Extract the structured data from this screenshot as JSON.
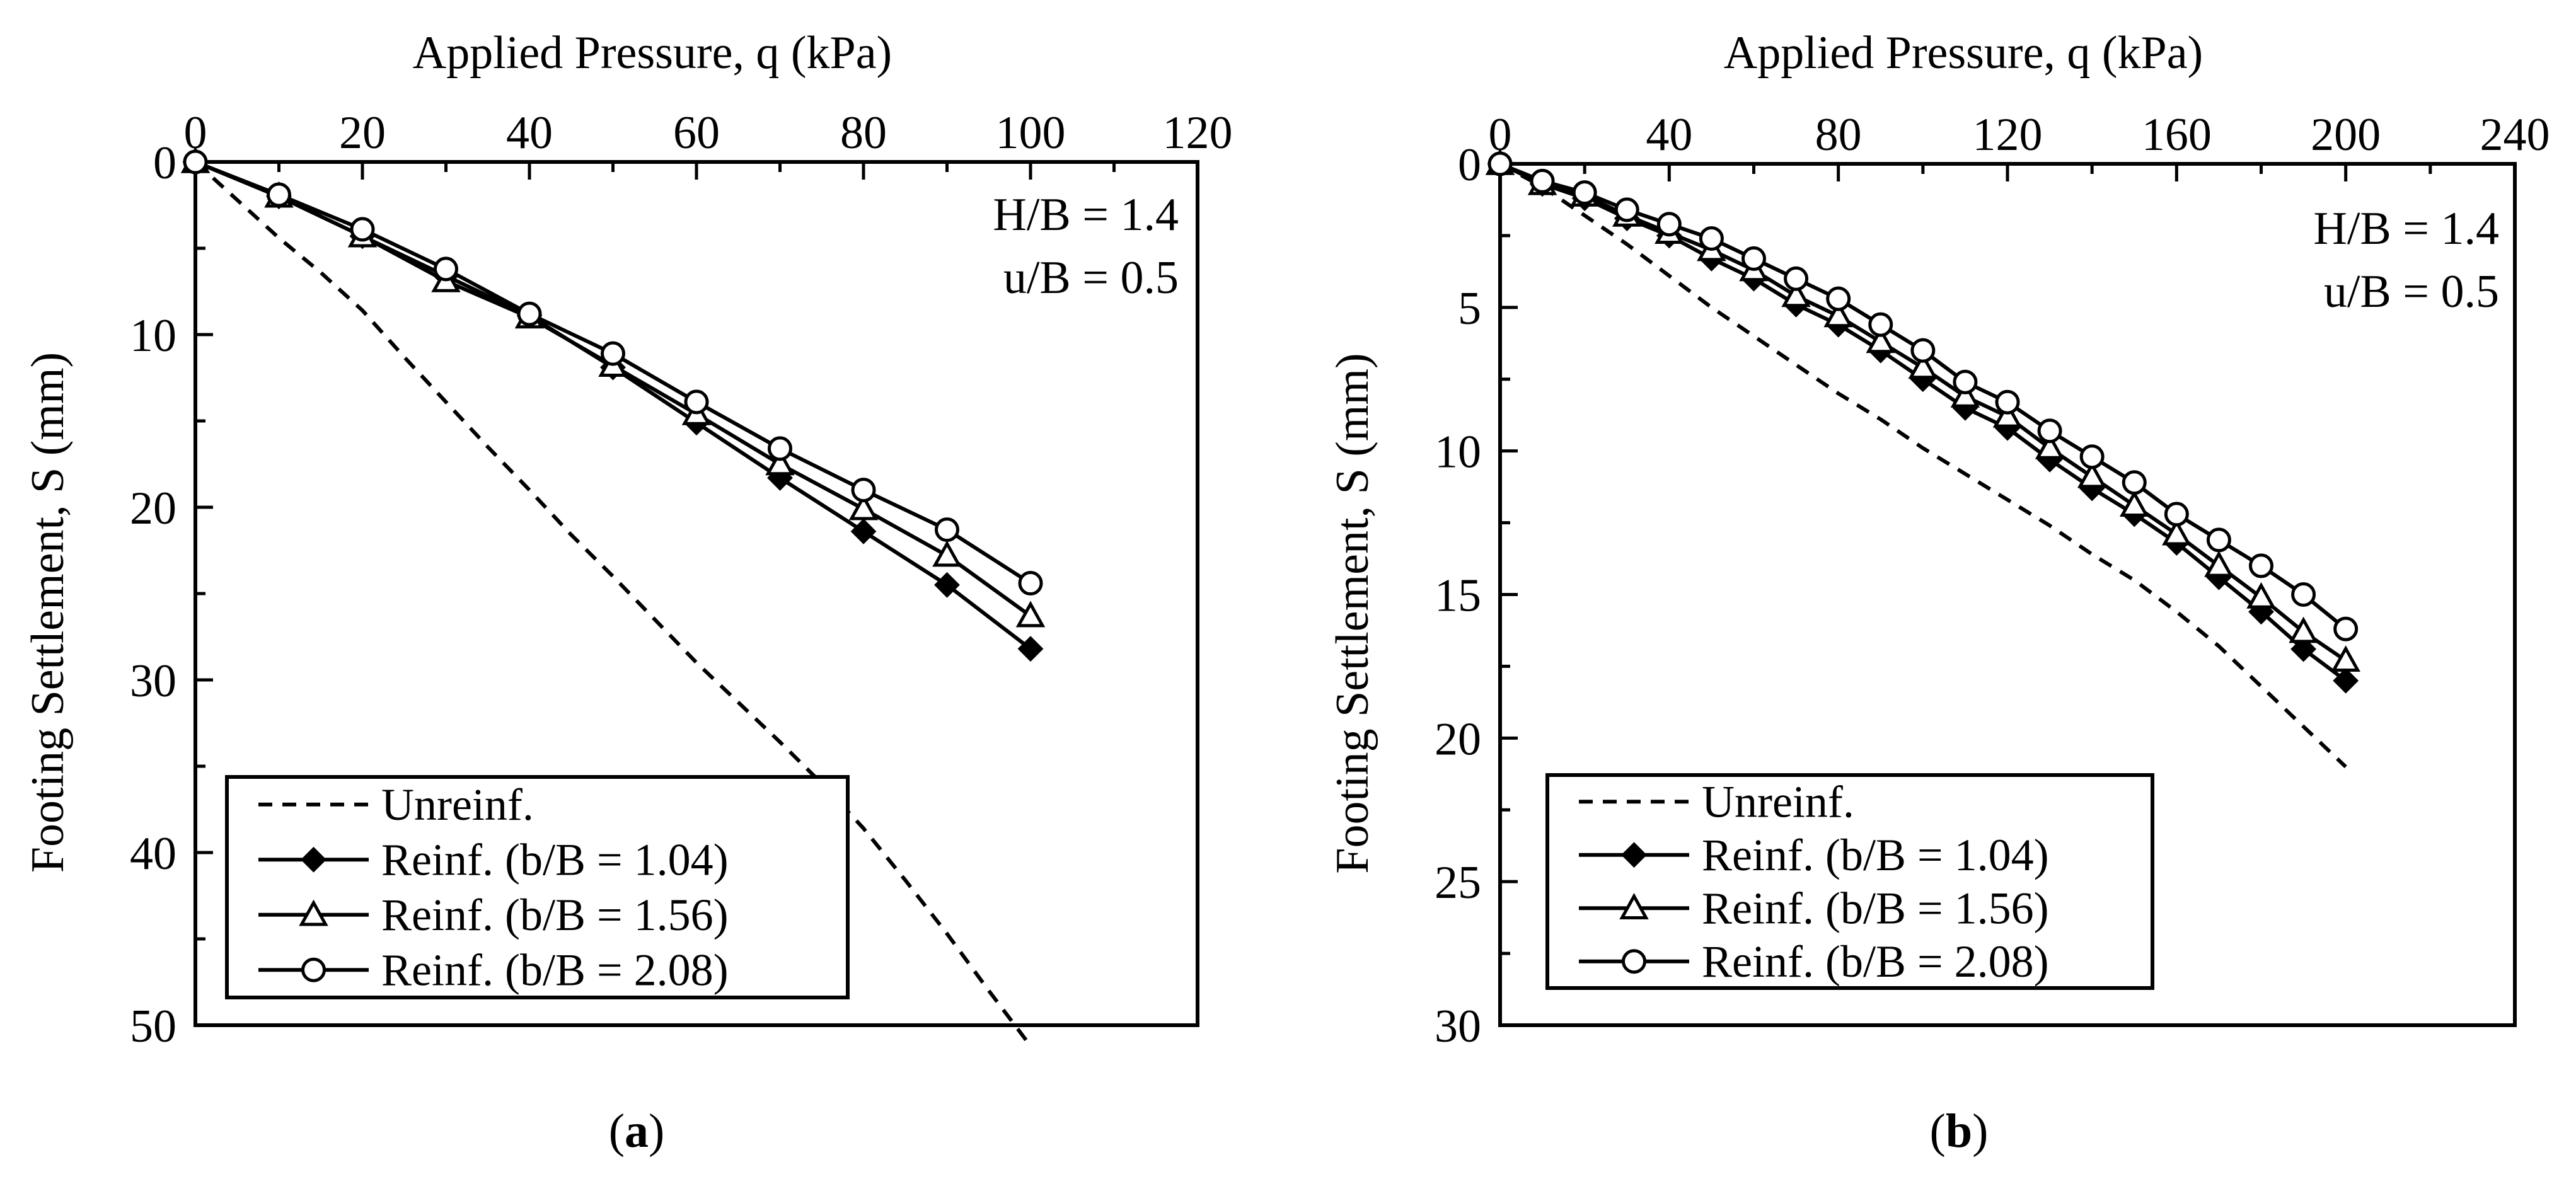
{
  "chart_data": [
    {
      "type": "line",
      "panel": "a",
      "caption": {
        "open": "(",
        "letter": "a",
        "close": ")"
      },
      "xlabel": "Applied Pressure, q (kPa)",
      "ylabel": "Footing Settlement, S (mm)",
      "xlim": [
        0,
        120
      ],
      "ylim": [
        0,
        50
      ],
      "y_inverted": true,
      "x_axis_position": "top",
      "xticks": [
        0,
        20,
        40,
        60,
        80,
        100,
        120
      ],
      "yticks": [
        0,
        10,
        20,
        30,
        40,
        50
      ],
      "annotations": [
        "H/B = 1.4",
        "u/B = 0.5"
      ],
      "legend_position": "bottom-left",
      "series": [
        {
          "name": "Unreinf.",
          "style": "dashed",
          "marker": "none",
          "x": [
            0,
            5,
            10,
            15,
            20,
            25,
            30,
            35,
            40,
            45,
            50,
            55,
            60,
            65,
            70,
            75,
            80,
            85,
            90,
            95,
            100
          ],
          "y": [
            0,
            2.2,
            4.4,
            6.4,
            8.6,
            11.3,
            13.9,
            16.5,
            19.0,
            21.6,
            24.0,
            26.5,
            29.0,
            31.3,
            33.6,
            36.0,
            38.6,
            41.6,
            44.7,
            48.0,
            51.2
          ]
        },
        {
          "name": "Reinf. (b/B = 1.04)",
          "style": "solid",
          "marker": "diamond",
          "x": [
            0,
            10,
            20,
            30,
            40,
            50,
            60,
            70,
            80,
            90,
            100
          ],
          "y": [
            0,
            2.0,
            4.3,
            6.6,
            8.9,
            11.9,
            15.1,
            18.3,
            21.4,
            24.5,
            28.2
          ]
        },
        {
          "name": "Reinf. (b/B = 1.56)",
          "style": "solid",
          "marker": "triangle",
          "x": [
            0,
            10,
            20,
            30,
            40,
            50,
            60,
            70,
            80,
            90,
            100
          ],
          "y": [
            0,
            2.0,
            4.3,
            6.9,
            9.0,
            11.8,
            14.6,
            17.5,
            20.1,
            22.8,
            26.3
          ]
        },
        {
          "name": "Reinf. (b/B = 2.08)",
          "style": "solid",
          "marker": "circle",
          "x": [
            0,
            10,
            20,
            30,
            40,
            50,
            60,
            70,
            80,
            90,
            100
          ],
          "y": [
            0,
            1.9,
            3.9,
            6.2,
            8.8,
            11.1,
            13.9,
            16.6,
            19.0,
            21.3,
            24.4
          ]
        }
      ]
    },
    {
      "type": "line",
      "panel": "b",
      "caption": {
        "open": "(",
        "letter": "b",
        "close": ")"
      },
      "xlabel": "Applied Pressure, q (kPa)",
      "ylabel": "Footing Settlement, S (mm)",
      "xlim": [
        0,
        240
      ],
      "ylim": [
        0,
        30
      ],
      "y_inverted": true,
      "x_axis_position": "top",
      "xticks": [
        0,
        40,
        80,
        120,
        160,
        200,
        240
      ],
      "yticks": [
        0,
        5,
        10,
        15,
        20,
        25,
        30
      ],
      "annotations": [
        "H/B = 1.4",
        "u/B = 0.5"
      ],
      "legend_position": "bottom-left",
      "series": [
        {
          "name": "Unreinf.",
          "style": "dashed",
          "marker": "none",
          "x": [
            0,
            10,
            20,
            30,
            40,
            50,
            60,
            70,
            80,
            90,
            100,
            110,
            120,
            130,
            140,
            150,
            160,
            170,
            180,
            190,
            200
          ],
          "y": [
            0,
            0.8,
            1.8,
            2.8,
            3.9,
            5.0,
            6.0,
            7.0,
            8.0,
            8.9,
            9.9,
            10.8,
            11.7,
            12.6,
            13.6,
            14.5,
            15.6,
            16.8,
            18.2,
            19.6,
            21.0
          ]
        },
        {
          "name": "Reinf. (b/B = 1.04)",
          "style": "solid",
          "marker": "diamond",
          "x": [
            0,
            10,
            20,
            30,
            40,
            50,
            60,
            70,
            80,
            90,
            100,
            110,
            120,
            130,
            140,
            150,
            160,
            170,
            180,
            190,
            200
          ],
          "y": [
            0,
            0.7,
            1.2,
            1.9,
            2.5,
            3.3,
            4.0,
            4.9,
            5.6,
            6.5,
            7.5,
            8.5,
            9.2,
            10.3,
            11.3,
            12.2,
            13.2,
            14.4,
            15.6,
            16.9,
            18.0
          ]
        },
        {
          "name": "Reinf. (b/B = 1.56)",
          "style": "solid",
          "marker": "triangle",
          "x": [
            0,
            10,
            20,
            30,
            40,
            50,
            60,
            70,
            80,
            90,
            100,
            110,
            120,
            130,
            140,
            150,
            160,
            170,
            180,
            190,
            200
          ],
          "y": [
            0,
            0.7,
            1.1,
            1.8,
            2.4,
            3.0,
            3.7,
            4.6,
            5.3,
            6.2,
            7.1,
            8.1,
            8.8,
            9.9,
            10.9,
            11.9,
            12.9,
            14.0,
            15.1,
            16.3,
            17.3
          ]
        },
        {
          "name": "Reinf. (b/B = 2.08)",
          "style": "solid",
          "marker": "circle",
          "x": [
            0,
            10,
            20,
            30,
            40,
            50,
            60,
            70,
            80,
            90,
            100,
            110,
            120,
            130,
            140,
            150,
            160,
            170,
            180,
            190,
            200
          ],
          "y": [
            0,
            0.6,
            1.0,
            1.6,
            2.1,
            2.6,
            3.3,
            4.0,
            4.7,
            5.6,
            6.5,
            7.6,
            8.3,
            9.3,
            10.2,
            11.1,
            12.2,
            13.1,
            14.0,
            15.0,
            16.2
          ]
        }
      ]
    }
  ]
}
